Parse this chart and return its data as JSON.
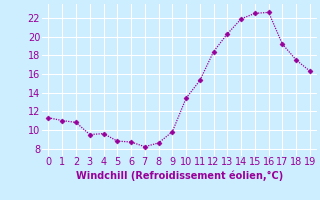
{
  "x": [
    0,
    1,
    2,
    3,
    4,
    5,
    6,
    7,
    8,
    9,
    10,
    11,
    12,
    13,
    14,
    15,
    16,
    17,
    18,
    19
  ],
  "y": [
    11.3,
    11.0,
    10.8,
    9.5,
    9.6,
    8.8,
    8.7,
    8.2,
    8.6,
    9.8,
    13.4,
    15.3,
    18.4,
    20.3,
    21.9,
    22.5,
    22.6,
    19.2,
    17.5,
    16.3
  ],
  "line_color": "#990099",
  "marker": "D",
  "marker_size": 2.5,
  "bg_color": "#cceeff",
  "grid_color": "#ffffff",
  "xlabel": "Windchill (Refroidissement éolien,°C)",
  "xlabel_color": "#990099",
  "tick_color": "#990099",
  "yticks": [
    8,
    10,
    12,
    14,
    16,
    18,
    20,
    22
  ],
  "xticks": [
    0,
    1,
    2,
    3,
    4,
    5,
    6,
    7,
    8,
    9,
    10,
    11,
    12,
    13,
    14,
    15,
    16,
    17,
    18,
    19
  ],
  "ylim": [
    7.2,
    23.5
  ],
  "xlim": [
    -0.5,
    19.5
  ],
  "tick_fontsize": 7,
  "xlabel_fontsize": 7
}
